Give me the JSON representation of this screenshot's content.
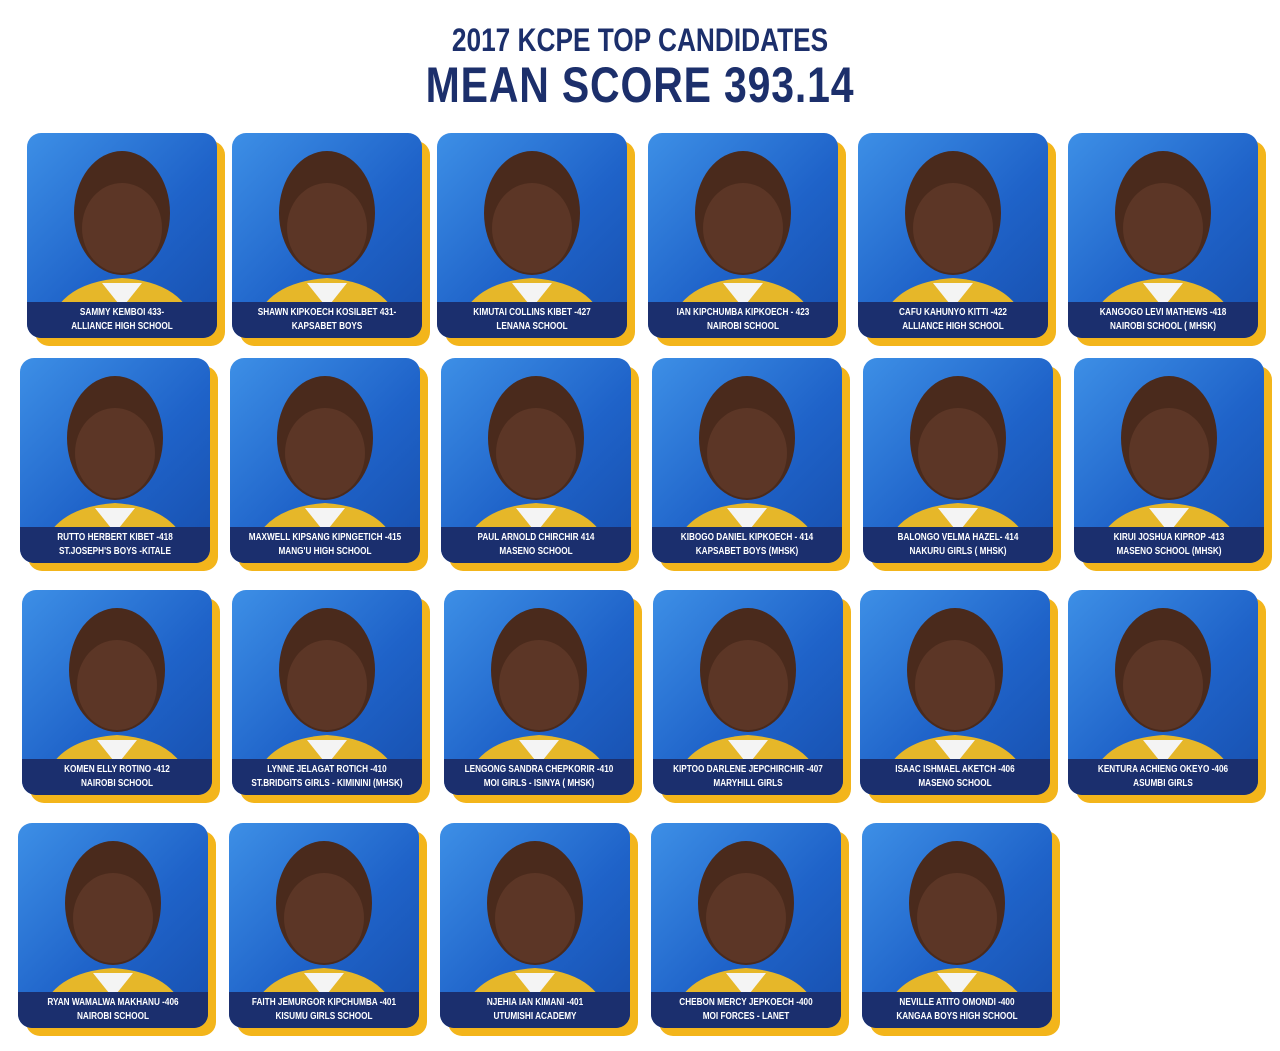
{
  "header": {
    "title": "2017 KCPE TOP CANDIDATES",
    "subtitle": "MEAN SCORE 393.14"
  },
  "candidates": [
    {
      "name": "SAMMY KEMBOI 433-",
      "school": "ALLIANCE HIGH SCHOOL"
    },
    {
      "name": "SHAWN KIPKOECH KOSILBET 431-",
      "school": "KAPSABET BOYS"
    },
    {
      "name": "KIMUTAI COLLINS KIBET -427",
      "school": "LENANA SCHOOL"
    },
    {
      "name": "IAN KIPCHUMBA KIPKOECH - 423",
      "school": "NAIROBI SCHOOL"
    },
    {
      "name": "CAFU KAHUNYO KITTI -422",
      "school": "ALLIANCE HIGH SCHOOL"
    },
    {
      "name": "KANGOGO LEVI MATHEWS -418",
      "school": "NAIROBI SCHOOL ( MHSK)"
    },
    {
      "name": "RUTTO HERBERT KIBET -418",
      "school": "ST.JOSEPH'S BOYS -KITALE"
    },
    {
      "name": "MAXWELL KIPSANG KIPNGETICH -415",
      "school": "MANG'U HIGH SCHOOL"
    },
    {
      "name": "PAUL ARNOLD CHIRCHIR 414",
      "school": "MASENO SCHOOL"
    },
    {
      "name": "KIBOGO DANIEL KIPKOECH - 414",
      "school": "KAPSABET BOYS (MHSK)"
    },
    {
      "name": "BALONGO VELMA HAZEL- 414",
      "school": "NAKURU GIRLS ( MHSK)"
    },
    {
      "name": "KIRUI JOSHUA KIPROP -413",
      "school": "MASENO SCHOOL (MHSK)"
    },
    {
      "name": "KOMEN ELLY ROTINO -412",
      "school": "NAIROBI SCHOOL"
    },
    {
      "name": "LYNNE JELAGAT ROTICH -410",
      "school": "ST.BRIDGITS GIRLS - KIMININI (MHSK)"
    },
    {
      "name": "LENGONG SANDRA CHEPKORIR -410",
      "school": "MOI GIRLS - ISINYA ( MHSK)"
    },
    {
      "name": "KIPTOO DARLENE JEPCHIRCHIR -407",
      "school": "MARYHILL GIRLS"
    },
    {
      "name": "ISAAC ISHMAEL AKETCH -406",
      "school": "MASENO SCHOOL"
    },
    {
      "name": "KENTURA ACHIENG OKEYO -406",
      "school": "ASUMBI GIRLS"
    },
    {
      "name": "RYAN WAMALWA MAKHANU -406",
      "school": "NAIROBI SCHOOL"
    },
    {
      "name": "FAITH JEMURGOR KIPCHUMBA -401",
      "school": "KISUMU GIRLS SCHOOL"
    },
    {
      "name": "NJEHIA IAN KIMANI -401",
      "school": "UTUMISHI ACADEMY"
    },
    {
      "name": "CHEBON MERCY JEPKOECH -400",
      "school": "MOI FORCES - LANET"
    },
    {
      "name": "NEVILLE ATITO OMONDI -400",
      "school": "KANGAA BOYS HIGH SCHOOL"
    }
  ]
}
